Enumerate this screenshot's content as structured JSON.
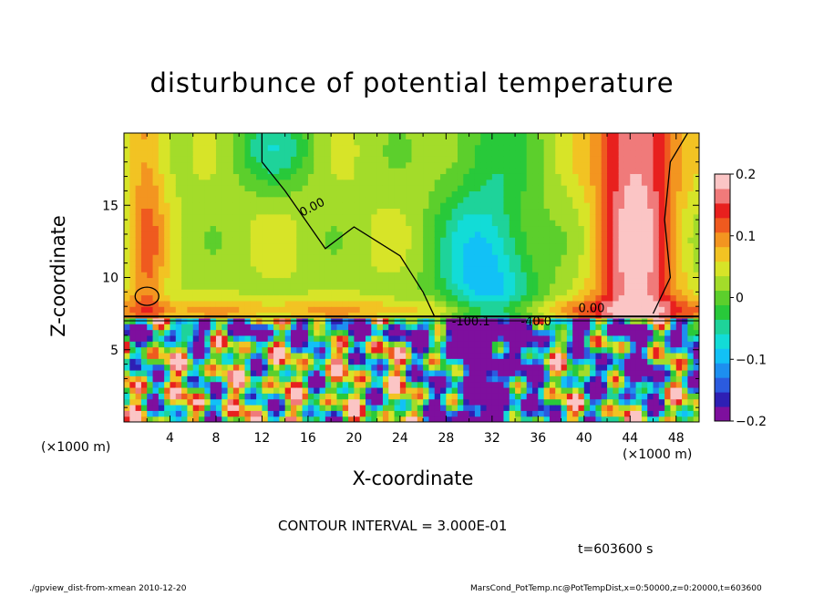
{
  "chart_data": {
    "type": "heatmap",
    "title": "disturbunce of potential temperature",
    "xlabel": "X-coordinate",
    "ylabel": "Z-coordinate",
    "x_unit_left": "(×1000 m)",
    "x_unit_right": "(×1000 m)",
    "xlim": [
      0,
      50
    ],
    "ylim": [
      0,
      20
    ],
    "x_ticks": [
      4,
      8,
      12,
      16,
      20,
      24,
      28,
      32,
      36,
      40,
      44,
      48
    ],
    "y_ticks": [
      5,
      10,
      15
    ],
    "colorbar": {
      "range": [
        -0.2,
        0.2
      ],
      "tick_values": [
        0.2,
        0.1,
        0,
        -0.1,
        -0.2
      ],
      "tick_labels": [
        "0.2",
        "0.1",
        "0",
        "−0.1",
        "−0.2"
      ],
      "colors": [
        "#7e0f9e",
        "#2e1fb4",
        "#2b5bdf",
        "#1d8ff0",
        "#12c1f6",
        "#12dcd7",
        "#1ed39a",
        "#28c93a",
        "#5ccf2c",
        "#a3dc2a",
        "#d7e428",
        "#f2c323",
        "#f39520",
        "#ef5a1f",
        "#e8201e",
        "#f07a7a",
        "#fbc5c5"
      ]
    },
    "contour_labels": [
      "0.00",
      "0.00",
      "-100.1",
      "-40.0"
    ],
    "contour_interval_text": "CONTOUR INTERVAL = 3.000E-01",
    "time_text": "t=603600 s"
  },
  "footer": {
    "left": "./gpview_dist-from-xmean  2010-12-20",
    "right": "MarsCond_PotTemp.nc@PotTempDist,x=0:50000,z=0:20000,t=603600"
  }
}
